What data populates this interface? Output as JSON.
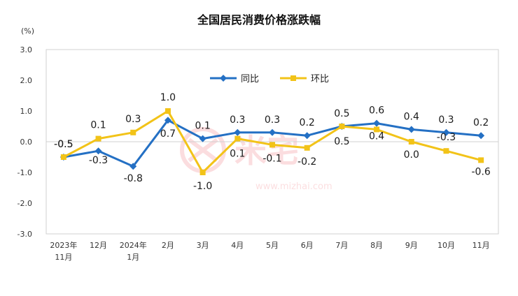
{
  "chart_data": {
    "type": "line",
    "title": "全国居民消费价格涨跌幅",
    "ylabel": "(%)",
    "xlabel": "",
    "ylim": [
      -3.0,
      3.0
    ],
    "yticks": [
      "3.0",
      "2.0",
      "1.0",
      "0.0",
      "-1.0",
      "-2.0",
      "-3.0"
    ],
    "categories": [
      [
        "2023年",
        "11月"
      ],
      [
        "12月"
      ],
      [
        "2024年",
        "1月"
      ],
      [
        "2月"
      ],
      [
        "3月"
      ],
      [
        "4月"
      ],
      [
        "5月"
      ],
      [
        "6月"
      ],
      [
        "7月"
      ],
      [
        "8月"
      ],
      [
        "9月"
      ],
      [
        "10月"
      ],
      [
        "11月"
      ]
    ],
    "series": [
      {
        "name": "同比",
        "color": "#2470c4",
        "values": [
          -0.5,
          -0.3,
          -0.8,
          0.7,
          0.1,
          0.3,
          0.3,
          0.2,
          0.5,
          0.6,
          0.4,
          0.3,
          0.2
        ],
        "labels": [
          "-0.5",
          "-0.3",
          "-0.8",
          "0.7",
          "0.1",
          "0.3",
          "0.3",
          "0.2",
          "0.5",
          "0.6",
          "0.4",
          "0.3",
          "0.2"
        ]
      },
      {
        "name": "环比",
        "color": "#f2c318",
        "values": [
          -0.5,
          0.1,
          0.3,
          1.0,
          -1.0,
          0.1,
          -0.1,
          -0.2,
          0.5,
          0.4,
          0.0,
          -0.3,
          -0.6
        ],
        "labels": [
          "-0.5",
          "0.1",
          "0.3",
          "1.0",
          "-1.0",
          "0.1",
          "-0.1",
          "-0.2",
          "0.5",
          "0.4",
          "0.0",
          "-0.3",
          "-0.6"
        ]
      }
    ],
    "legend_position": "top-right",
    "grid": false,
    "watermark": "米宅 www.mizhai.com"
  }
}
